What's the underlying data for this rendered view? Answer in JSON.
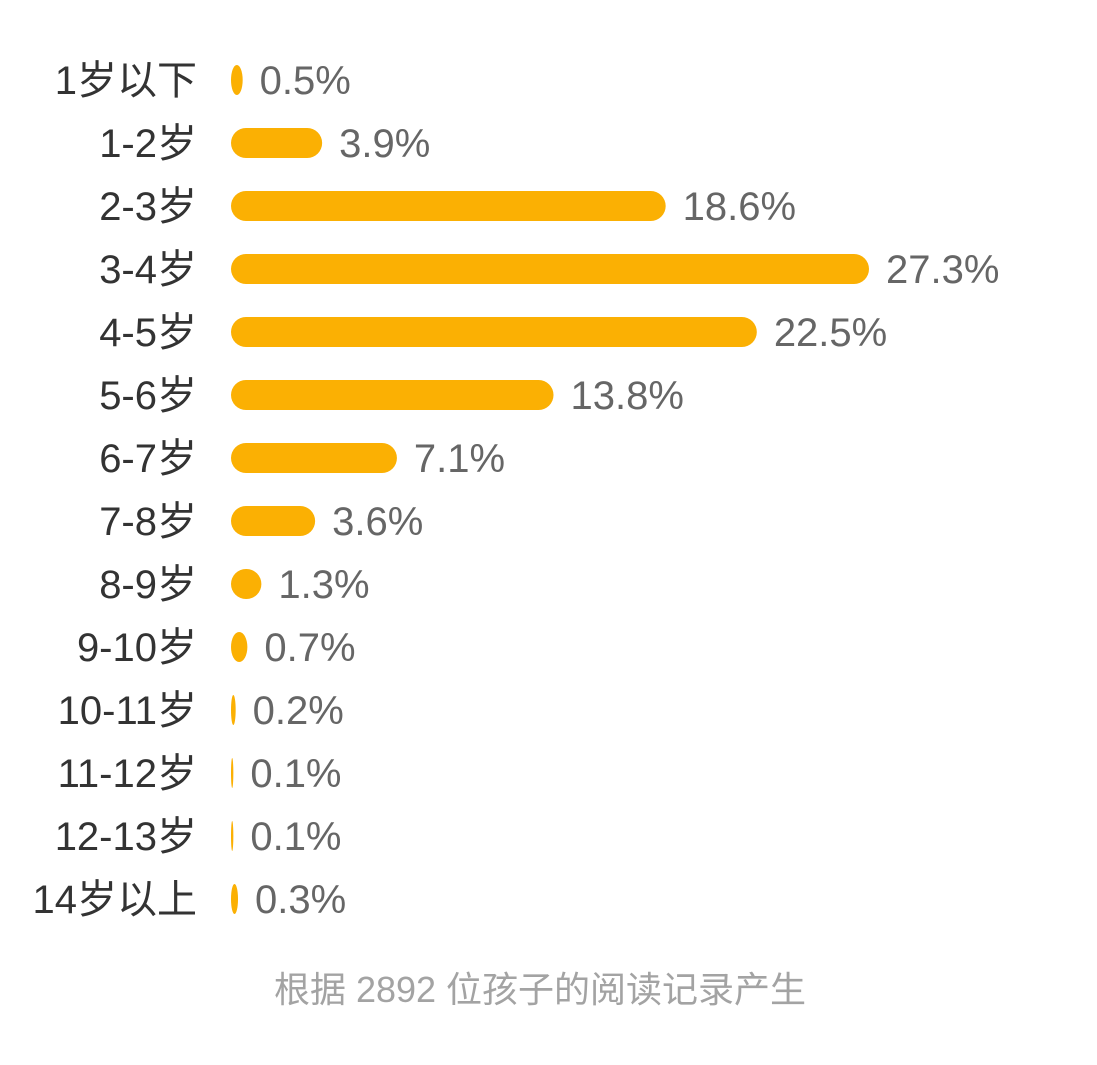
{
  "chart_data": {
    "type": "bar",
    "orientation": "horizontal",
    "categories": [
      "1岁以下",
      "1-2岁",
      "2-3岁",
      "3-4岁",
      "4-5岁",
      "5-6岁",
      "6-7岁",
      "7-8岁",
      "8-9岁",
      "9-10岁",
      "10-11岁",
      "11-12岁",
      "12-13岁",
      "14岁以上"
    ],
    "values": [
      0.5,
      3.9,
      18.6,
      27.3,
      22.5,
      13.8,
      7.1,
      3.6,
      1.3,
      0.7,
      0.2,
      0.1,
      0.1,
      0.3
    ],
    "value_labels": [
      "0.5%",
      "3.9%",
      "18.6%",
      "27.3%",
      "22.5%",
      "13.8%",
      "7.1%",
      "3.6%",
      "1.3%",
      "0.7%",
      "0.2%",
      "0.1%",
      "0.1%",
      "0.3%"
    ],
    "grid": false
  },
  "footer": {
    "note": "根据 2892 位孩子的阅读记录产生"
  },
  "colors": {
    "bar": "#FBB003",
    "category_text": "#333333",
    "value_text": "#666666",
    "footer_text": "#A3A3A3"
  }
}
